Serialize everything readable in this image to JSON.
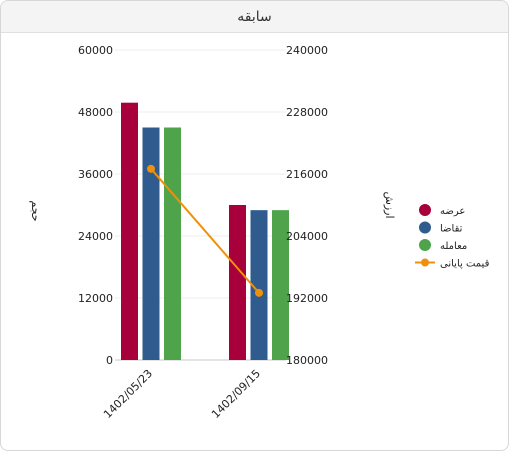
{
  "panel": {
    "title": "سابقه"
  },
  "chart_data": {
    "type": "bar",
    "categories": [
      "1402/05/23",
      "1402/09/15"
    ],
    "series": [
      {
        "name": "عرضه",
        "color": "#a8003a",
        "values": [
          49800,
          30000
        ]
      },
      {
        "name": "تقاضا",
        "color": "#2f5b8f",
        "values": [
          45000,
          29000
        ]
      },
      {
        "name": "معامله",
        "color": "#4ea34b",
        "values": [
          45000,
          29000
        ]
      }
    ],
    "line_series": {
      "name": "قیمت پایانی",
      "color": "#f0900a",
      "values": [
        217000,
        193000
      ]
    },
    "ylabel_left": "حجم",
    "ylabel_right": "ارزش",
    "ylim_left": [
      0,
      60000
    ],
    "ylim_right": [
      180000,
      240000
    ],
    "yticks_left": [
      "0",
      "12000",
      "24000",
      "36000",
      "48000",
      "60000"
    ],
    "yticks_right": [
      "180000",
      "192000",
      "204000",
      "216000",
      "228000",
      "240000"
    ],
    "grid": true,
    "legend_position": "right"
  }
}
